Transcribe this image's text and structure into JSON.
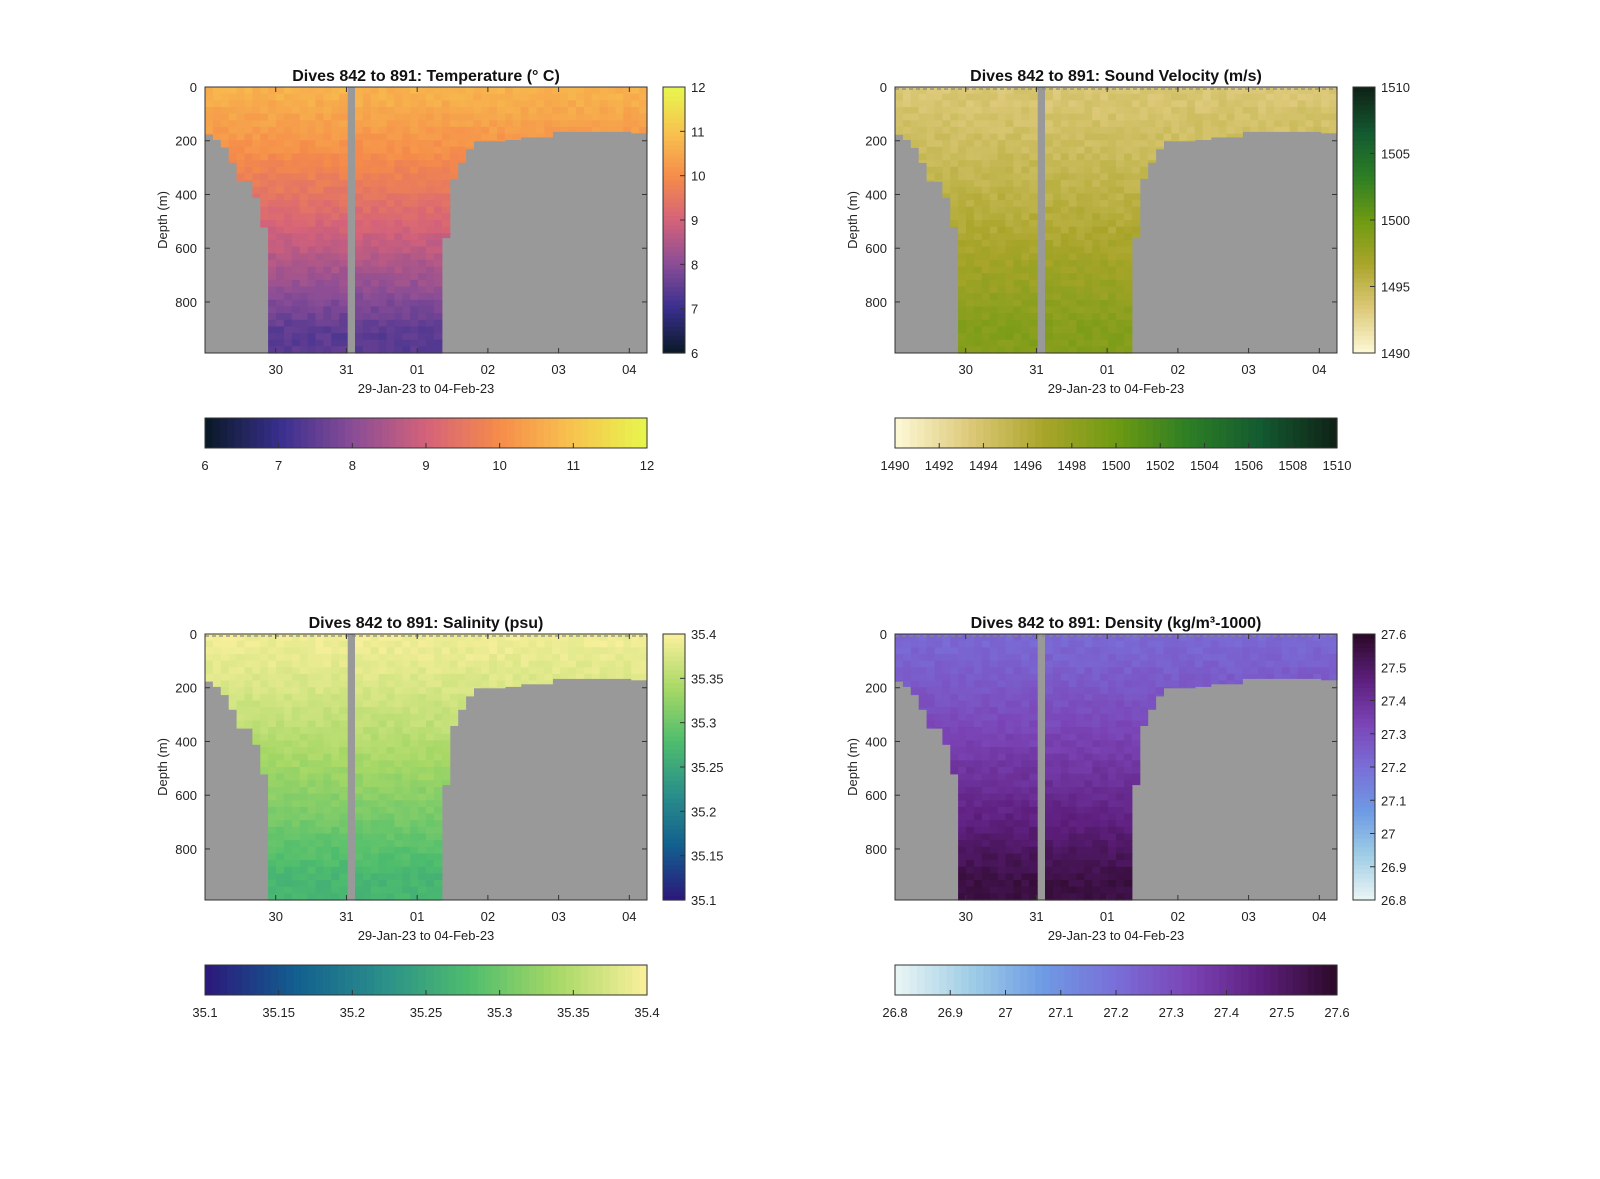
{
  "chart_data": [
    {
      "type": "heatmap",
      "title": "Dives 842 to 891: Temperature (° C)",
      "ylabel": "Depth (m)",
      "xlabel": "29-Jan-23 to 04-Feb-23",
      "xlim": [
        "29-Jan-23",
        "04-Feb-23"
      ],
      "ylim": [
        990,
        0
      ],
      "y_reversed": true,
      "yticks": [
        0,
        200,
        400,
        600,
        800
      ],
      "xtick_labels": [
        "30",
        "31",
        "01",
        "02",
        "03",
        "04"
      ],
      "colorbar_ticks": [
        "6",
        "7",
        "8",
        "9",
        "10",
        "11",
        "12"
      ],
      "h_colorbar_ticks": [
        "6",
        "7",
        "8",
        "9",
        "10",
        "11",
        "12"
      ],
      "clim": [
        6,
        12
      ],
      "colormap": [
        "#0b1a2a",
        "#3a2f8f",
        "#8a4d96",
        "#d4627a",
        "#f58b4a",
        "#f8c24e",
        "#e8f44e"
      ],
      "profile": {
        "surface": 10.7,
        "bottom": 7.4
      },
      "no_data_color": "#999999",
      "dashed_surface": false
    },
    {
      "type": "heatmap",
      "title": "Dives 842 to 891: Sound Velocity (m/s)",
      "ylabel": "Depth (m)",
      "xlabel": "29-Jan-23 to 04-Feb-23",
      "xlim": [
        "29-Jan-23",
        "04-Feb-23"
      ],
      "ylim": [
        990,
        0
      ],
      "y_reversed": true,
      "yticks": [
        0,
        200,
        400,
        600,
        800
      ],
      "xtick_labels": [
        "30",
        "31",
        "01",
        "02",
        "03",
        "04"
      ],
      "colorbar_ticks": [
        "1490",
        "1495",
        "1500",
        "1505",
        "1510"
      ],
      "h_colorbar_ticks": [
        "1490",
        "1492",
        "1494",
        "1496",
        "1498",
        "1500",
        "1502",
        "1504",
        "1506",
        "1508",
        "1510"
      ],
      "clim": [
        1490,
        1510
      ],
      "colormap": [
        "#fcf7d3",
        "#dcc877",
        "#a9a52a",
        "#6e9a12",
        "#2d7e25",
        "#135a30",
        "#0f2417"
      ],
      "profile": {
        "surface": 1493.5,
        "bottom": 1498.8
      },
      "no_data_color": "#999999",
      "dashed_surface": true
    },
    {
      "type": "heatmap",
      "title": "Dives 842 to 891: Salinity (psu)",
      "ylabel": "Depth (m)",
      "xlabel": "29-Jan-23 to 04-Feb-23",
      "xlim": [
        "29-Jan-23",
        "04-Feb-23"
      ],
      "ylim": [
        990,
        0
      ],
      "y_reversed": true,
      "yticks": [
        0,
        200,
        400,
        600,
        800
      ],
      "xtick_labels": [
        "30",
        "31",
        "01",
        "02",
        "03",
        "04"
      ],
      "colorbar_ticks": [
        "35.1",
        "35.15",
        "35.2",
        "35.25",
        "35.3",
        "35.35",
        "35.4"
      ],
      "h_colorbar_ticks": [
        "35.1",
        "35.15",
        "35.2",
        "35.25",
        "35.3",
        "35.35",
        "35.4"
      ],
      "clim": [
        35.1,
        35.4
      ],
      "colormap": [
        "#2b1a7c",
        "#125f8f",
        "#2a8f8a",
        "#4ebd6d",
        "#a7d866",
        "#f7ef9a"
      ],
      "profile": {
        "surface": 35.395,
        "bottom": 35.27
      },
      "no_data_color": "#999999",
      "dashed_surface": true
    },
    {
      "type": "heatmap",
      "title": "Dives 842 to 891: Density (kg/m³-1000)",
      "ylabel": "Depth (m)",
      "xlabel": "29-Jan-23 to 04-Feb-23",
      "xlim": [
        "29-Jan-23",
        "04-Feb-23"
      ],
      "ylim": [
        990,
        0
      ],
      "y_reversed": true,
      "yticks": [
        0,
        200,
        400,
        600,
        800
      ],
      "xtick_labels": [
        "30",
        "31",
        "01",
        "02",
        "03",
        "04"
      ],
      "colorbar_ticks": [
        "26.8",
        "26.9",
        "27",
        "27.1",
        "27.2",
        "27.3",
        "27.4",
        "27.5",
        "27.6"
      ],
      "h_colorbar_ticks": [
        "26.8",
        "26.9",
        "27",
        "27.1",
        "27.2",
        "27.3",
        "27.4",
        "27.5",
        "27.6"
      ],
      "clim": [
        26.8,
        27.6
      ],
      "colormap": [
        "#e7f4f4",
        "#9fcde6",
        "#6e9ae4",
        "#7a6ed8",
        "#7b44b6",
        "#5e1f7e",
        "#2e0a2c"
      ],
      "profile": {
        "surface": 27.22,
        "bottom": 27.56
      },
      "no_data_color": "#999999",
      "dashed_surface": true
    }
  ]
}
